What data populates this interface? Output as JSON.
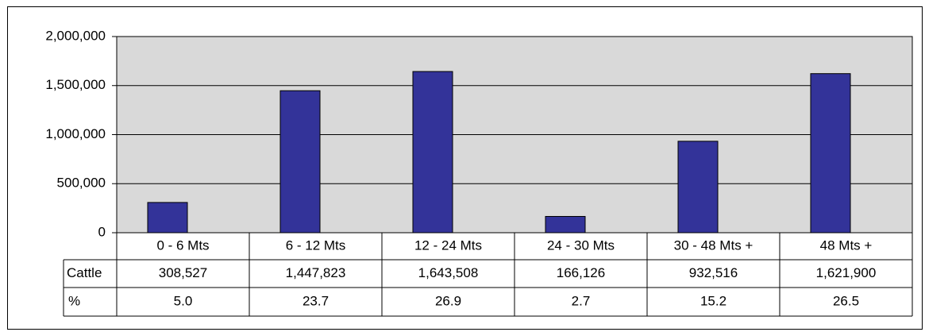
{
  "chart_data": {
    "type": "bar",
    "categories": [
      "0 - 6 Mts",
      "6 - 12 Mts",
      "12 - 24 Mts",
      "24 - 30 Mts",
      "30  - 48 Mts +",
      "48 Mts +"
    ],
    "series": [
      {
        "name": "Cattle",
        "color": "#333399",
        "values": [
          308527,
          1447823,
          1643508,
          166126,
          932516,
          1621900
        ],
        "value_labels": [
          "308,527",
          "1,447,823",
          "1,643,508",
          "166,126",
          "932,516",
          "1,621,900"
        ]
      }
    ],
    "percent_row": {
      "name": "%",
      "values": [
        5.0,
        23.7,
        26.9,
        2.7,
        15.2,
        26.5
      ],
      "value_labels": [
        "5.0",
        "23.7",
        "26.9",
        "2.7",
        "15.2",
        "26.5"
      ]
    },
    "ylim": [
      0,
      2000000
    ],
    "yticks": [
      {
        "value": 0,
        "label": "0"
      },
      {
        "value": 500000,
        "label": "500,000"
      },
      {
        "value": 1000000,
        "label": "1,000,000"
      },
      {
        "value": 1500000,
        "label": "1,500,000"
      },
      {
        "value": 2000000,
        "label": "2,000,000"
      }
    ],
    "grid": true
  }
}
